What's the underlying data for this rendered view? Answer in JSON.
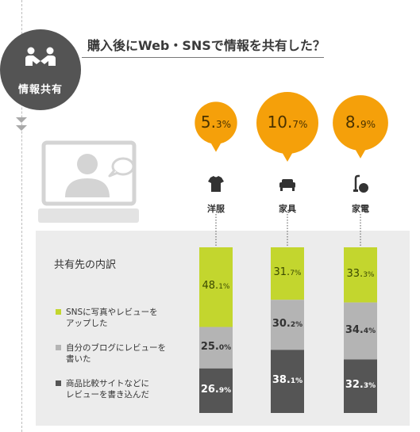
{
  "badge": {
    "label": "情報共有",
    "icon": "handshake-people-icon"
  },
  "title": "購入後にWeb・SNSで情報を共有した？",
  "illustration": {
    "icon": "monitor-person-speech-icon"
  },
  "chart_data": {
    "type": "bar",
    "title": "購入後にWeb・SNSで情報を共有した？",
    "categories": [
      "洋服",
      "家具",
      "家電"
    ],
    "category_icons": [
      "tshirt-icon",
      "sofa-icon",
      "vacuum-icon"
    ],
    "share_rate": {
      "values": [
        5.3,
        10.7,
        8.9
      ],
      "display": [
        "5.3",
        "10.7",
        "8.9"
      ],
      "unit": "%"
    },
    "breakdown_title": "共有先の内訳",
    "stacked": true,
    "series": [
      {
        "name": "SNSに写真やレビューを\nアップした",
        "color": "#c3d62e",
        "values": [
          48.1,
          31.7,
          33.3
        ],
        "display": [
          "48.1",
          "31.7",
          "33.3"
        ]
      },
      {
        "name": "自分のブログにレビューを\n書いた",
        "color": "#b4b4b4",
        "values": [
          25.0,
          30.2,
          34.4
        ],
        "display": [
          "25.0",
          "30.2",
          "34.4"
        ]
      },
      {
        "name": "商品比較サイトなどに\nレビューを書き込んだ",
        "color": "#555555",
        "values": [
          26.9,
          38.1,
          32.3
        ],
        "display": [
          "26.9",
          "38.1",
          "32.3"
        ]
      }
    ],
    "unit": "%",
    "bubble_color": "#f5a00a"
  }
}
